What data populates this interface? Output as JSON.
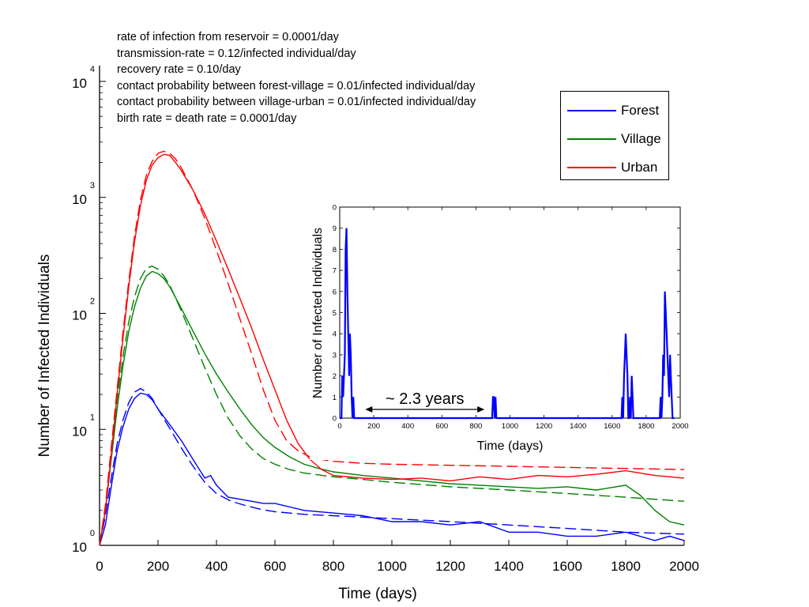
{
  "chart_data": [
    {
      "type": "line",
      "xlabel": "Time (days)",
      "ylabel": "Number of Infected Individuals",
      "xlim": [
        0,
        2000
      ],
      "ylim": [
        1,
        10000
      ],
      "yscale": "log",
      "xticks": [
        0,
        200,
        400,
        600,
        800,
        1000,
        1200,
        1400,
        1600,
        1800,
        2000
      ],
      "yticks": [
        {
          "base": "10",
          "exp": "0",
          "value": 1
        },
        {
          "base": "10",
          "exp": "1",
          "value": 10
        },
        {
          "base": "10",
          "exp": "2",
          "value": 100
        },
        {
          "base": "10",
          "exp": "3",
          "value": 1000
        },
        {
          "base": "10",
          "exp": "4",
          "value": 10000
        }
      ],
      "grid": false,
      "legend_position": "top-right",
      "annotations": [
        "rate of infection from reservoir = 0.0001/day",
        "transmission-rate = 0.12/infected individual/day",
        "recovery rate = 0.10/day",
        "contact probability between forest-village = 0.01/infected individual/day",
        "contact probability between village-urban = 0.01/infected individual/day",
        "birth rate = death rate = 0.0001/day"
      ],
      "series": [
        {
          "name": "Forest",
          "color": "#0000ff",
          "style": "solid",
          "x": [
            0,
            20,
            40,
            60,
            80,
            100,
            120,
            140,
            160,
            180,
            200,
            240,
            280,
            320,
            360,
            380,
            400,
            440,
            480,
            520,
            560,
            600,
            700,
            800,
            900,
            1000,
            1100,
            1200,
            1300,
            1400,
            1500,
            1600,
            1700,
            1800,
            1900,
            1950,
            2000
          ],
          "y": [
            1,
            1.5,
            3.2,
            6.5,
            10.5,
            15,
            18.5,
            20.5,
            20,
            18,
            15,
            11,
            8,
            5.5,
            3.8,
            4,
            3.3,
            2.6,
            2.5,
            2.4,
            2.3,
            2.3,
            2.0,
            1.9,
            1.8,
            1.6,
            1.6,
            1.5,
            1.6,
            1.3,
            1.3,
            1.2,
            1.2,
            1.3,
            1.1,
            1.2,
            1.1
          ]
        },
        {
          "name": "Forest",
          "color": "#0000ff",
          "style": "dashed",
          "x": [
            0,
            20,
            40,
            60,
            80,
            100,
            120,
            140,
            160,
            180,
            200,
            240,
            280,
            320,
            360,
            400,
            450,
            500,
            550,
            600,
            700,
            800,
            900,
            1000,
            1200,
            1400,
            1600,
            1800,
            2000
          ],
          "y": [
            1,
            1.8,
            3.8,
            7.5,
            12,
            17,
            21,
            22.5,
            21,
            18.5,
            15,
            10.2,
            6.9,
            4.8,
            3.5,
            2.8,
            2.4,
            2.2,
            2.05,
            1.95,
            1.85,
            1.8,
            1.75,
            1.7,
            1.6,
            1.5,
            1.4,
            1.3,
            1.25
          ]
        },
        {
          "name": "Village",
          "color": "#008000",
          "style": "solid",
          "x": [
            0,
            20,
            40,
            60,
            80,
            100,
            120,
            140,
            160,
            180,
            200,
            220,
            240,
            280,
            320,
            360,
            400,
            440,
            480,
            520,
            560,
            600,
            650,
            700,
            750,
            800,
            900,
            1000,
            1100,
            1200,
            1300,
            1400,
            1500,
            1600,
            1700,
            1800,
            1850,
            1900,
            1950,
            2000
          ],
          "y": [
            1,
            2,
            5.5,
            15,
            35,
            70,
            115,
            165,
            210,
            230,
            220,
            200,
            170,
            110,
            70,
            45,
            30,
            21,
            15,
            11,
            8.5,
            7,
            5.8,
            5.0,
            4.6,
            4.3,
            4.0,
            3.8,
            3.6,
            3.4,
            3.3,
            3.2,
            3.1,
            3.2,
            3.0,
            3.3,
            2.7,
            2.0,
            1.6,
            1.5
          ]
        },
        {
          "name": "Village",
          "color": "#008000",
          "style": "dashed",
          "x": [
            0,
            20,
            40,
            60,
            80,
            100,
            120,
            140,
            160,
            180,
            200,
            220,
            240,
            280,
            320,
            360,
            400,
            440,
            480,
            520,
            560,
            600,
            650,
            700,
            800,
            900,
            1000,
            1200,
            1400,
            1600,
            1800,
            2000
          ],
          "y": [
            1,
            2.2,
            6.5,
            18,
            42,
            85,
            140,
            200,
            245,
            255,
            240,
            210,
            175,
            105,
            60,
            34,
            20,
            12.5,
            8.8,
            6.8,
            5.6,
            5.0,
            4.5,
            4.2,
            3.9,
            3.7,
            3.5,
            3.2,
            3.0,
            2.8,
            2.6,
            2.4
          ]
        },
        {
          "name": "Urban",
          "color": "#ff0000",
          "style": "solid",
          "x": [
            0,
            20,
            40,
            60,
            80,
            100,
            120,
            140,
            160,
            180,
            200,
            220,
            240,
            260,
            280,
            320,
            360,
            400,
            440,
            480,
            520,
            560,
            600,
            640,
            680,
            720,
            760,
            800,
            900,
            1000,
            1100,
            1200,
            1300,
            1400,
            1500,
            1600,
            1700,
            1800,
            1900,
            2000
          ],
          "y": [
            1,
            2,
            6,
            20,
            60,
            170,
            420,
            850,
            1400,
            1900,
            2200,
            2350,
            2300,
            2000,
            1700,
            1150,
            720,
            420,
            240,
            135,
            75,
            40,
            22,
            12,
            7.5,
            5.5,
            4.5,
            4.0,
            3.8,
            3.7,
            3.8,
            3.6,
            3.9,
            3.7,
            4.0,
            3.9,
            4.1,
            4.4,
            4.0,
            3.8
          ]
        },
        {
          "name": "Urban",
          "color": "#ff0000",
          "style": "dashed",
          "x": [
            0,
            20,
            40,
            60,
            80,
            100,
            120,
            140,
            160,
            180,
            200,
            220,
            240,
            260,
            280,
            320,
            360,
            400,
            440,
            480,
            520,
            560,
            600,
            640,
            680,
            720,
            760,
            800,
            900,
            1000,
            1200,
            1400,
            1600,
            1800,
            2000
          ],
          "y": [
            1,
            2.2,
            7,
            22,
            68,
            190,
            470,
            950,
            1550,
            2050,
            2400,
            2500,
            2400,
            2150,
            1800,
            1150,
            660,
            350,
            180,
            90,
            45,
            22,
            12,
            8,
            6.5,
            5.8,
            5.5,
            5.3,
            5.1,
            5.0,
            4.9,
            4.8,
            4.7,
            4.6,
            4.5
          ]
        }
      ]
    },
    {
      "type": "line",
      "xlabel": "Time (days)",
      "ylabel": "Number of Infected Individuals",
      "xlim": [
        0,
        2000
      ],
      "ylim": [
        0,
        10
      ],
      "xticks": [
        0,
        200,
        400,
        600,
        800,
        1000,
        1200,
        1400,
        1600,
        1800,
        2000
      ],
      "yticks": [
        0,
        1,
        2,
        3,
        4,
        5,
        6,
        7,
        8,
        9
      ],
      "top_tick_label": "0",
      "annotation": "~ 2.3 years",
      "annotation_range": [
        150,
        850
      ],
      "series": [
        {
          "name": "Forest",
          "color": "#0000ff",
          "x": [
            0,
            10,
            15,
            20,
            25,
            30,
            35,
            40,
            45,
            50,
            55,
            60,
            65,
            70,
            75,
            80,
            85,
            90,
            95,
            100,
            895,
            900,
            905,
            910,
            915,
            920,
            925,
            1655,
            1660,
            1665,
            1670,
            1675,
            1680,
            1685,
            1690,
            1695,
            1700,
            1705,
            1710,
            1715,
            1720,
            1725,
            1730,
            1735,
            1740,
            1745,
            1750,
            1755,
            1760,
            1880,
            1885,
            1890,
            1895,
            1900,
            1905,
            1910,
            1915,
            1920,
            1925,
            1930,
            1935,
            1940,
            1945,
            1950,
            1955,
            1960,
            1965
          ],
          "y": [
            0,
            0,
            2,
            1,
            2,
            3,
            8,
            9,
            6,
            4,
            2,
            4,
            3,
            1,
            0,
            1,
            0,
            0,
            0,
            0,
            0,
            1,
            1,
            0,
            1,
            0,
            0,
            0,
            1,
            0,
            2,
            3,
            4,
            3,
            2,
            0,
            0,
            1,
            0,
            2,
            1,
            0,
            0,
            0,
            0,
            0,
            0,
            0,
            0,
            0,
            1,
            0,
            1,
            3,
            2,
            6,
            5,
            4,
            3,
            2,
            1,
            3,
            2,
            1,
            0,
            0,
            0
          ]
        }
      ]
    }
  ],
  "legend": [
    {
      "label": "Forest",
      "color": "#0000ff"
    },
    {
      "label": "Village",
      "color": "#008000"
    },
    {
      "label": "Urban",
      "color": "#ff0000"
    }
  ]
}
